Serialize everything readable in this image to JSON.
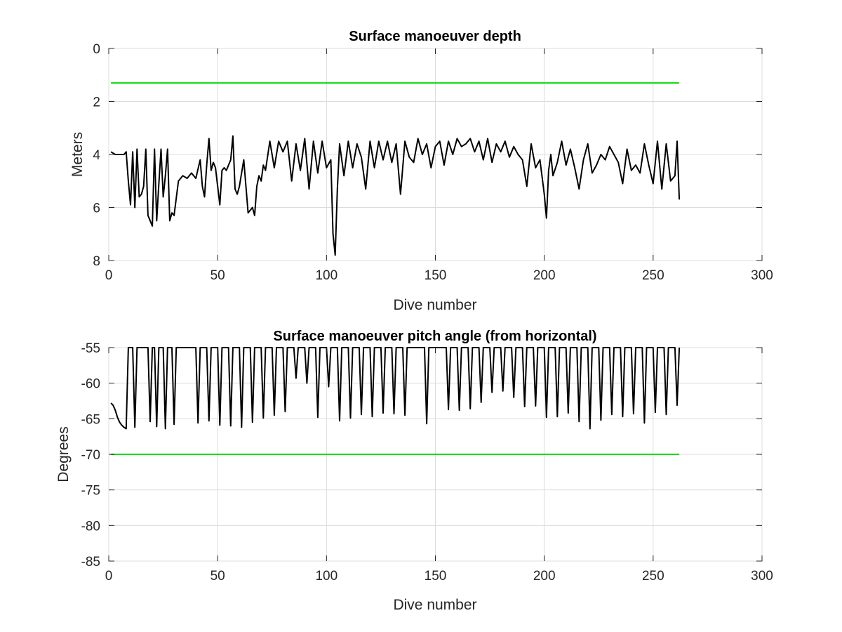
{
  "chart_data": [
    {
      "type": "line",
      "title": "Surface manoeuver depth",
      "xlabel": "Dive number",
      "ylabel": "Meters",
      "xlim": [
        0,
        300
      ],
      "ylim": [
        0,
        8
      ],
      "y_reversed": true,
      "xticks": [
        0,
        50,
        100,
        150,
        200,
        250,
        300
      ],
      "yticks": [
        0,
        2,
        4,
        6,
        8
      ],
      "grid": true,
      "series": [
        {
          "color": "#000000",
          "x": [
            1,
            2,
            3,
            4,
            5,
            6,
            7,
            8,
            9,
            10,
            11,
            12,
            13,
            14,
            15,
            16,
            17,
            18,
            19,
            20,
            21,
            22,
            23,
            24,
            25,
            26,
            27,
            28,
            29,
            30,
            32,
            34,
            36,
            38,
            40,
            42,
            43,
            44,
            45,
            46,
            47,
            48,
            49,
            50,
            51,
            52,
            53,
            54,
            55,
            56,
            57,
            58,
            59,
            60,
            62,
            64,
            66,
            67,
            68,
            69,
            70,
            71,
            72,
            74,
            76,
            78,
            80,
            82,
            84,
            86,
            88,
            90,
            92,
            94,
            96,
            98,
            100,
            102,
            103,
            104,
            105,
            106,
            108,
            110,
            112,
            114,
            116,
            118,
            120,
            122,
            124,
            126,
            128,
            130,
            132,
            134,
            136,
            138,
            140,
            142,
            144,
            146,
            148,
            150,
            152,
            154,
            156,
            158,
            160,
            162,
            164,
            166,
            168,
            170,
            172,
            174,
            176,
            178,
            180,
            182,
            184,
            186,
            188,
            190,
            192,
            194,
            196,
            198,
            200,
            201,
            202,
            203,
            204,
            206,
            208,
            210,
            212,
            214,
            216,
            218,
            220,
            222,
            224,
            226,
            228,
            230,
            232,
            234,
            236,
            238,
            240,
            242,
            244,
            246,
            248,
            250,
            252,
            254,
            256,
            258,
            260,
            261,
            262
          ],
          "values": [
            3.9,
            3.95,
            4.0,
            4.0,
            4.0,
            4.0,
            4.0,
            3.9,
            5.0,
            5.9,
            3.9,
            6.0,
            3.8,
            5.6,
            5.5,
            5.2,
            3.8,
            6.3,
            6.5,
            6.7,
            3.8,
            6.5,
            5.1,
            3.8,
            5.6,
            4.8,
            3.8,
            6.5,
            6.2,
            6.3,
            5.0,
            4.8,
            4.9,
            4.7,
            4.9,
            4.2,
            5.2,
            5.6,
            4.4,
            3.4,
            4.6,
            4.3,
            4.5,
            5.2,
            5.9,
            4.6,
            4.5,
            4.6,
            4.4,
            4.2,
            3.3,
            5.3,
            5.5,
            5.2,
            4.2,
            6.2,
            6.0,
            6.3,
            5.2,
            4.8,
            5.0,
            4.4,
            4.6,
            3.5,
            4.5,
            3.5,
            3.9,
            3.5,
            5.0,
            3.6,
            4.6,
            3.4,
            5.3,
            3.5,
            4.7,
            3.5,
            4.5,
            4.2,
            7.0,
            7.8,
            5.3,
            3.6,
            4.8,
            3.5,
            4.5,
            3.6,
            4.1,
            5.3,
            3.5,
            4.5,
            3.5,
            4.2,
            3.5,
            4.3,
            3.6,
            5.5,
            3.5,
            4.1,
            4.3,
            3.4,
            4.0,
            3.6,
            4.5,
            3.7,
            3.5,
            4.4,
            3.5,
            4.0,
            3.4,
            3.7,
            3.6,
            3.4,
            3.9,
            3.5,
            4.2,
            3.4,
            4.3,
            3.6,
            3.9,
            3.5,
            4.1,
            3.7,
            4.0,
            4.2,
            5.2,
            3.6,
            4.5,
            4.2,
            5.5,
            6.4,
            4.6,
            4.0,
            4.8,
            4.3,
            3.5,
            4.4,
            3.8,
            4.5,
            5.3,
            4.2,
            3.6,
            4.7,
            4.4,
            4.0,
            4.2,
            3.7,
            4.0,
            4.3,
            5.1,
            3.8,
            4.6,
            4.4,
            4.7,
            3.6,
            4.4,
            5.1,
            3.5,
            5.3,
            3.6,
            5.0,
            4.8,
            3.5,
            5.7
          ]
        },
        {
          "color": "#00dd00",
          "x": [
            1,
            262
          ],
          "values": [
            1.3,
            1.3
          ]
        }
      ]
    },
    {
      "type": "line",
      "title": "Surface manoeuver pitch angle (from horizontal)",
      "xlabel": "Dive number",
      "ylabel": "Degrees",
      "xlim": [
        0,
        300
      ],
      "ylim": [
        -85,
        -55
      ],
      "xticks": [
        0,
        50,
        100,
        150,
        200,
        250,
        300
      ],
      "yticks": [
        -55,
        -60,
        -65,
        -70,
        -75,
        -80,
        -85
      ],
      "grid": true,
      "series": [
        {
          "color": "#000000",
          "x": [
            1,
            2,
            3,
            4,
            5,
            6,
            7,
            8,
            9,
            10,
            11,
            12,
            13,
            14,
            15,
            16,
            17,
            18,
            19,
            20,
            21,
            22,
            23,
            24,
            25,
            26,
            27,
            28,
            29,
            30,
            31,
            32,
            33,
            40,
            41,
            42,
            45,
            46,
            47,
            50,
            51,
            52,
            55,
            56,
            57,
            60,
            61,
            62,
            65,
            66,
            67,
            70,
            71,
            72,
            75,
            76,
            77,
            80,
            81,
            82,
            85,
            86,
            87,
            90,
            91,
            92,
            95,
            96,
            97,
            100,
            101,
            102,
            105,
            106,
            107,
            110,
            111,
            112,
            115,
            116,
            117,
            120,
            121,
            122,
            125,
            126,
            127,
            130,
            131,
            132,
            135,
            136,
            137,
            145,
            146,
            147,
            155,
            156,
            157,
            160,
            161,
            162,
            165,
            166,
            167,
            170,
            171,
            172,
            175,
            176,
            177,
            180,
            181,
            182,
            185,
            186,
            187,
            190,
            191,
            192,
            195,
            196,
            197,
            200,
            201,
            202,
            205,
            206,
            207,
            210,
            211,
            212,
            215,
            216,
            217,
            220,
            221,
            222,
            225,
            226,
            227,
            230,
            231,
            232,
            235,
            236,
            237,
            240,
            241,
            242,
            245,
            246,
            247,
            250,
            251,
            252,
            255,
            256,
            257,
            260,
            261,
            262
          ],
          "values": [
            -62.8,
            -63.1,
            -63.8,
            -64.8,
            -65.5,
            -65.9,
            -66.2,
            -66.4,
            -55,
            -55,
            -55,
            -66.2,
            -55,
            -55,
            -55,
            -55,
            -55,
            -55,
            -65.4,
            -55,
            -55,
            -66.1,
            -55,
            -55,
            -55,
            -66.4,
            -55,
            -55,
            -55,
            -65.8,
            -55,
            -55,
            -55,
            -55,
            -65.6,
            -55,
            -55,
            -65.3,
            -55,
            -55,
            -65.9,
            -55,
            -55,
            -66.0,
            -55,
            -55,
            -66.2,
            -55,
            -55,
            -65.5,
            -55,
            -55,
            -64.9,
            -55,
            -55,
            -64.5,
            -55,
            -55,
            -64.0,
            -55,
            -55,
            -59.3,
            -55,
            -55,
            -60.0,
            -55,
            -55,
            -64.8,
            -55,
            -55,
            -60.5,
            -55,
            -55,
            -65.3,
            -55,
            -55,
            -64.9,
            -55,
            -55,
            -64.4,
            -55,
            -55,
            -64.7,
            -55,
            -55,
            -64.2,
            -55,
            -55,
            -64.3,
            -55,
            -55,
            -64.5,
            -55,
            -55,
            -65.7,
            -55,
            -55,
            -63.7,
            -55,
            -55,
            -63.8,
            -55,
            -55,
            -63.6,
            -55,
            -55,
            -62.7,
            -55,
            -55,
            -61.3,
            -55,
            -55,
            -61.1,
            -55,
            -55,
            -62.0,
            -55,
            -55,
            -63.3,
            -55,
            -55,
            -63.2,
            -55,
            -55,
            -64.8,
            -55,
            -55,
            -64.7,
            -55,
            -55,
            -64.2,
            -55,
            -55,
            -65.4,
            -55,
            -55,
            -66.4,
            -55,
            -55,
            -65.2,
            -55,
            -55,
            -64.4,
            -55,
            -55,
            -64.7,
            -55,
            -55,
            -64.3,
            -55,
            -55,
            -65.6,
            -55,
            -55,
            -64.1,
            -55,
            -55,
            -64.4,
            -55,
            -55,
            -63.1,
            -55
          ]
        },
        {
          "color": "#00dd00",
          "x": [
            1,
            262
          ],
          "values": [
            -70,
            -70
          ]
        }
      ]
    }
  ]
}
